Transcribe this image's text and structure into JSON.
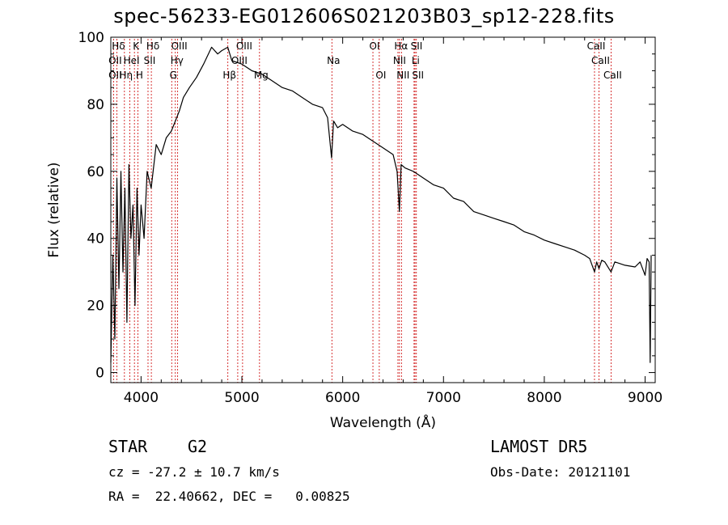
{
  "title": "spec-56233-EG012606S021203B03_sp12-228.fits",
  "info": {
    "object_class": "STAR",
    "subclass": "G2",
    "survey": "LAMOST DR5",
    "cz": "cz = -27.2 ± 10.7 km/s",
    "obs_date": "Obs-Date: 20121101",
    "coords": "RA =  22.40662, DEC =   0.00825"
  },
  "chart_data": {
    "type": "line",
    "title": "spec-56233-EG012606S021203B03_sp12-228.fits",
    "xlabel": "Wavelength (Å)",
    "ylabel": "Flux (relative)",
    "xlim": [
      3700,
      9100
    ],
    "ylim": [
      -3,
      100
    ],
    "x_ticks": [
      4000,
      5000,
      6000,
      7000,
      8000,
      9000
    ],
    "y_ticks": [
      0,
      20,
      40,
      60,
      80,
      100
    ],
    "grid": false,
    "line_color": "#000000",
    "marker_color": "#cc0000",
    "series": [
      {
        "x": [
          3700,
          3720,
          3740,
          3760,
          3780,
          3800,
          3820,
          3840,
          3860,
          3880,
          3900,
          3920,
          3940,
          3960,
          3980,
          4000,
          4030,
          4060,
          4100,
          4150,
          4200,
          4250,
          4300,
          4340,
          4380,
          4420,
          4480,
          4550,
          4620,
          4700,
          4760,
          4800,
          4860,
          4900,
          5000,
          5100,
          5200,
          5300,
          5400,
          5500,
          5600,
          5700,
          5800,
          5850,
          5890,
          5910,
          5950,
          6000,
          6100,
          6200,
          6300,
          6400,
          6500,
          6540,
          6563,
          6580,
          6620,
          6700,
          6800,
          6900,
          7000,
          7100,
          7200,
          7300,
          7400,
          7500,
          7600,
          7700,
          7800,
          7900,
          8000,
          8100,
          8200,
          8300,
          8400,
          8450,
          8498,
          8520,
          8542,
          8570,
          8600,
          8662,
          8700,
          8800,
          8900,
          8950,
          9000,
          9020,
          9040,
          9050,
          9060
        ],
        "y": [
          3,
          35,
          10,
          58,
          25,
          60,
          30,
          55,
          15,
          62,
          40,
          50,
          20,
          55,
          35,
          50,
          40,
          60,
          55,
          68,
          65,
          70,
          72,
          75,
          78,
          82,
          85,
          88,
          92,
          97,
          95,
          96,
          97,
          93,
          92,
          90,
          89,
          87,
          85,
          84,
          82,
          80,
          79,
          76,
          64,
          75,
          73,
          74,
          72,
          71,
          69,
          67,
          65,
          60,
          48,
          62,
          61,
          60,
          58,
          56,
          55,
          52,
          51,
          48,
          47,
          46,
          45,
          44,
          42,
          41,
          39.5,
          38.5,
          37.5,
          36.5,
          35,
          34,
          30,
          33,
          31,
          33.5,
          33,
          30,
          33,
          32,
          31.5,
          33,
          29,
          34,
          33,
          3,
          35
        ]
      }
    ],
    "line_markers": [
      {
        "label": "Hδ",
        "x": 3760,
        "row": 0
      },
      {
        "label": "K",
        "x": 3934,
        "row": 0
      },
      {
        "label": "Hδ",
        "x": 4102,
        "row": 0
      },
      {
        "label": "OIII",
        "x": 4363,
        "row": 0
      },
      {
        "label": "OIII",
        "x": 5007,
        "row": 0
      },
      {
        "label": "OI",
        "x": 6300,
        "row": 0
      },
      {
        "label": "Hα",
        "x": 6563,
        "row": 0
      },
      {
        "label": "SII",
        "x": 6717,
        "row": 0
      },
      {
        "label": "CaII",
        "x": 8498,
        "row": 0
      },
      {
        "label": "OII",
        "x": 3727,
        "row": 1
      },
      {
        "label": "HeI",
        "x": 3889,
        "row": 1
      },
      {
        "label": "SII",
        "x": 4069,
        "row": 1
      },
      {
        "label": "Hγ",
        "x": 4340,
        "row": 1
      },
      {
        "label": "OIII",
        "x": 4959,
        "row": 1
      },
      {
        "label": "Na",
        "x": 5893,
        "row": 1
      },
      {
        "label": "NII",
        "x": 6548,
        "row": 1
      },
      {
        "label": "Li",
        "x": 6708,
        "row": 1
      },
      {
        "label": "CaII",
        "x": 8542,
        "row": 1
      },
      {
        "label": "OII",
        "x": 3727,
        "row": 2
      },
      {
        "label": "Hη",
        "x": 3835,
        "row": 2
      },
      {
        "label": "H",
        "x": 3968,
        "row": 2
      },
      {
        "label": "G",
        "x": 4304,
        "row": 2
      },
      {
        "label": "Hβ",
        "x": 4861,
        "row": 2
      },
      {
        "label": "Mg",
        "x": 5175,
        "row": 2
      },
      {
        "label": "OI",
        "x": 6363,
        "row": 2
      },
      {
        "label": "NII",
        "x": 6583,
        "row": 2
      },
      {
        "label": "SII",
        "x": 6731,
        "row": 2
      },
      {
        "label": "CaII",
        "x": 8662,
        "row": 2
      }
    ]
  }
}
